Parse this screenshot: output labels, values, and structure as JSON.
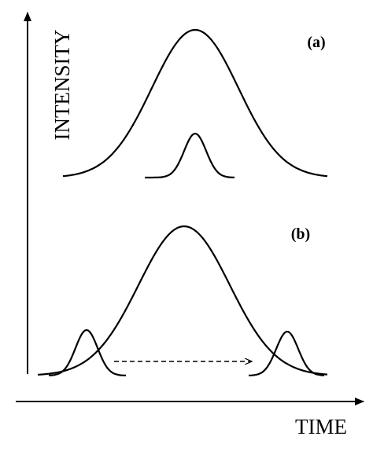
{
  "axes": {
    "y_label": "INTENSITY",
    "x_label": "TIME"
  },
  "panels": [
    {
      "label": "(a)"
    },
    {
      "label": "(b)"
    }
  ]
}
